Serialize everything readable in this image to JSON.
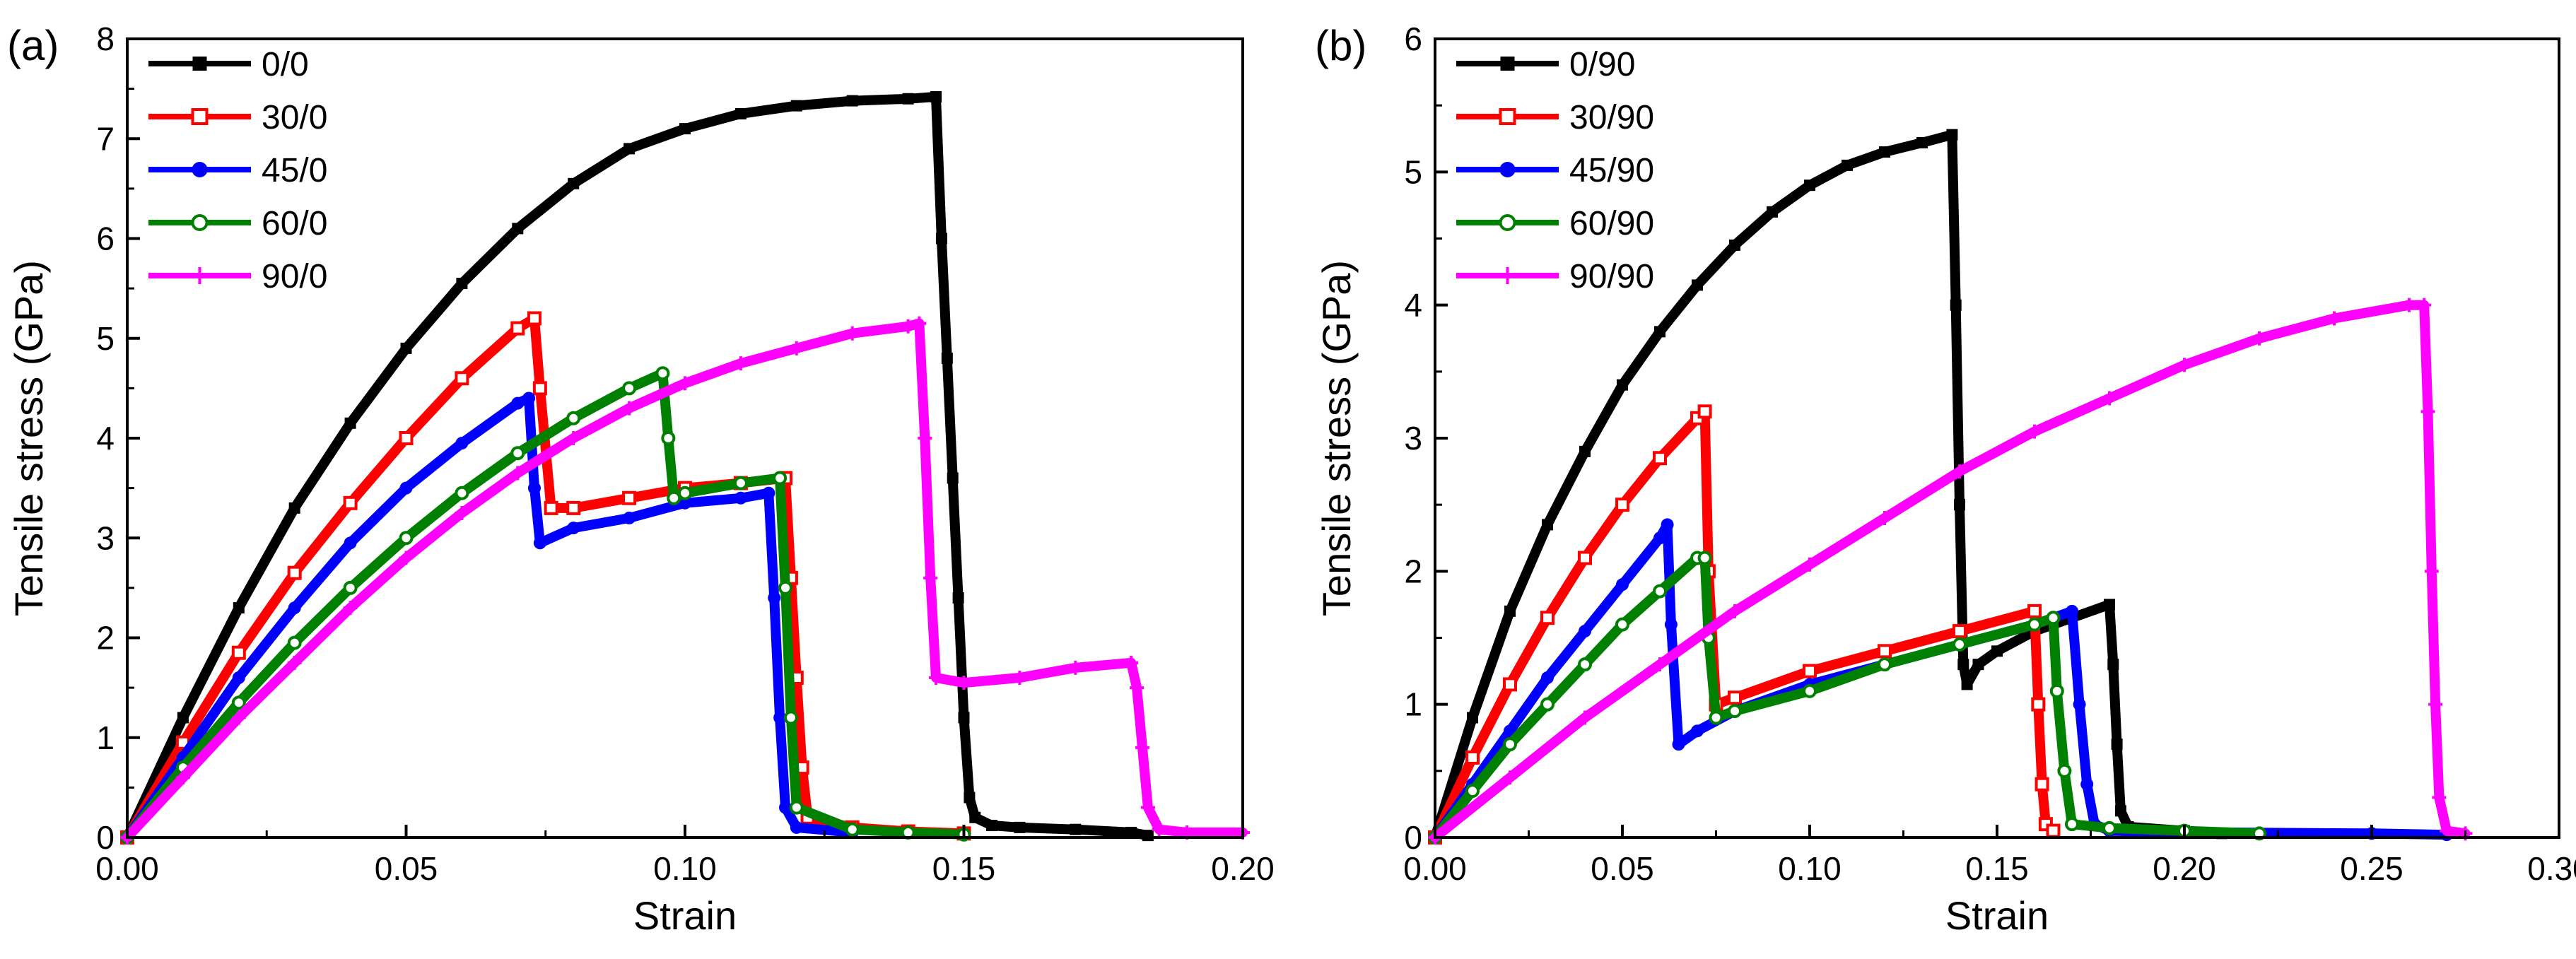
{
  "chart_data": [
    {
      "type": "scatter",
      "panel_label": "(a)",
      "xlabel": "Strain",
      "ylabel": "Tensile stress (GPa)",
      "xlim": [
        0,
        0.2
      ],
      "ylim": [
        0,
        8
      ],
      "x_ticks": [
        "0.00",
        "0.05",
        "0.10",
        "0.15",
        "0.20"
      ],
      "y_ticks": [
        "0",
        "1",
        "2",
        "3",
        "4",
        "5",
        "6",
        "7",
        "8"
      ],
      "x_tick_values": [
        0,
        0.05,
        0.1,
        0.15,
        0.2
      ],
      "y_tick_values": [
        0,
        1,
        2,
        3,
        4,
        5,
        6,
        7,
        8
      ],
      "legend_position": "top-left",
      "series": [
        {
          "name": "0/0",
          "color": "#000000",
          "marker": "filled-square",
          "x": [
            0.0,
            0.01,
            0.02,
            0.03,
            0.04,
            0.05,
            0.06,
            0.07,
            0.08,
            0.09,
            0.1,
            0.11,
            0.12,
            0.13,
            0.14,
            0.145,
            0.146,
            0.147,
            0.148,
            0.149,
            0.15,
            0.151,
            0.152,
            0.155,
            0.16,
            0.17,
            0.18,
            0.183
          ],
          "y": [
            0.0,
            1.2,
            2.3,
            3.3,
            4.15,
            4.9,
            5.55,
            6.1,
            6.55,
            6.9,
            7.1,
            7.25,
            7.33,
            7.38,
            7.4,
            7.42,
            6.0,
            4.8,
            3.6,
            2.4,
            1.2,
            0.4,
            0.2,
            0.12,
            0.1,
            0.08,
            0.05,
            0.02
          ]
        },
        {
          "name": "30/0",
          "color": "#ff0000",
          "marker": "open-square",
          "x": [
            0.0,
            0.01,
            0.02,
            0.03,
            0.04,
            0.05,
            0.06,
            0.07,
            0.073,
            0.074,
            0.076,
            0.08,
            0.09,
            0.1,
            0.11,
            0.118,
            0.119,
            0.12,
            0.121,
            0.122,
            0.13,
            0.14,
            0.15
          ],
          "y": [
            0.0,
            0.95,
            1.85,
            2.65,
            3.35,
            4.0,
            4.6,
            5.1,
            5.2,
            4.5,
            3.3,
            3.3,
            3.4,
            3.5,
            3.55,
            3.6,
            2.6,
            1.6,
            0.7,
            0.2,
            0.1,
            0.06,
            0.04
          ]
        },
        {
          "name": "45/0",
          "color": "#0000ff",
          "marker": "filled-circle",
          "x": [
            0.0,
            0.01,
            0.02,
            0.03,
            0.04,
            0.05,
            0.06,
            0.07,
            0.072,
            0.073,
            0.074,
            0.08,
            0.09,
            0.1,
            0.11,
            0.115,
            0.116,
            0.117,
            0.118,
            0.12,
            0.13
          ],
          "y": [
            0.0,
            0.8,
            1.6,
            2.3,
            2.95,
            3.5,
            3.95,
            4.35,
            4.4,
            3.5,
            2.95,
            3.1,
            3.2,
            3.35,
            3.4,
            3.45,
            2.4,
            1.2,
            0.3,
            0.1,
            0.05
          ]
        },
        {
          "name": "60/0",
          "color": "#008000",
          "marker": "open-circle",
          "x": [
            0.0,
            0.01,
            0.02,
            0.03,
            0.04,
            0.05,
            0.06,
            0.07,
            0.08,
            0.09,
            0.096,
            0.097,
            0.098,
            0.1,
            0.11,
            0.117,
            0.118,
            0.119,
            0.12,
            0.13,
            0.14,
            0.15
          ],
          "y": [
            0.0,
            0.7,
            1.35,
            1.95,
            2.5,
            3.0,
            3.45,
            3.85,
            4.2,
            4.5,
            4.65,
            4.0,
            3.4,
            3.45,
            3.55,
            3.6,
            2.5,
            1.2,
            0.3,
            0.08,
            0.05,
            0.03
          ]
        },
        {
          "name": "90/0",
          "color": "#ff00ff",
          "marker": "plus",
          "x": [
            0.0,
            0.01,
            0.02,
            0.03,
            0.04,
            0.05,
            0.06,
            0.07,
            0.08,
            0.09,
            0.1,
            0.11,
            0.12,
            0.13,
            0.14,
            0.142,
            0.143,
            0.144,
            0.145,
            0.15,
            0.16,
            0.17,
            0.18,
            0.181,
            0.182,
            0.183,
            0.185,
            0.19,
            0.2
          ],
          "y": [
            0.0,
            0.6,
            1.2,
            1.75,
            2.3,
            2.8,
            3.25,
            3.65,
            4.0,
            4.3,
            4.55,
            4.75,
            4.9,
            5.05,
            5.12,
            5.15,
            4.0,
            2.6,
            1.6,
            1.55,
            1.6,
            1.7,
            1.75,
            1.5,
            0.9,
            0.3,
            0.08,
            0.05,
            0.05
          ]
        }
      ]
    },
    {
      "type": "scatter",
      "panel_label": "(b)",
      "xlabel": "Strain",
      "ylabel": "Tensile stress (GPa)",
      "xlim": [
        0,
        0.3
      ],
      "ylim": [
        0,
        6
      ],
      "x_ticks": [
        "0.00",
        "0.05",
        "0.10",
        "0.15",
        "0.20",
        "0.25",
        "0.30"
      ],
      "y_ticks": [
        "0",
        "1",
        "2",
        "3",
        "4",
        "5",
        "6"
      ],
      "x_tick_values": [
        0,
        0.05,
        0.1,
        0.15,
        0.2,
        0.25,
        0.3
      ],
      "y_tick_values": [
        0,
        1,
        2,
        3,
        4,
        5,
        6
      ],
      "legend_position": "top-left",
      "series": [
        {
          "name": "0/90",
          "color": "#000000",
          "marker": "filled-square",
          "x": [
            0.0,
            0.01,
            0.02,
            0.03,
            0.04,
            0.05,
            0.06,
            0.07,
            0.08,
            0.09,
            0.1,
            0.11,
            0.12,
            0.13,
            0.138,
            0.139,
            0.14,
            0.141,
            0.142,
            0.145,
            0.15,
            0.16,
            0.17,
            0.18,
            0.181,
            0.182,
            0.183,
            0.185,
            0.2,
            0.21
          ],
          "y": [
            0.0,
            0.9,
            1.7,
            2.35,
            2.9,
            3.4,
            3.8,
            4.15,
            4.45,
            4.7,
            4.9,
            5.05,
            5.15,
            5.22,
            5.28,
            4.0,
            2.5,
            1.3,
            1.15,
            1.3,
            1.4,
            1.55,
            1.65,
            1.75,
            1.3,
            0.7,
            0.2,
            0.08,
            0.05,
            0.03
          ]
        },
        {
          "name": "30/90",
          "color": "#ff0000",
          "marker": "open-square",
          "x": [
            0.0,
            0.01,
            0.02,
            0.03,
            0.04,
            0.05,
            0.06,
            0.07,
            0.072,
            0.073,
            0.075,
            0.08,
            0.1,
            0.12,
            0.14,
            0.16,
            0.161,
            0.162,
            0.163,
            0.165
          ],
          "y": [
            0.0,
            0.6,
            1.15,
            1.65,
            2.1,
            2.5,
            2.85,
            3.15,
            3.2,
            2.0,
            1.0,
            1.05,
            1.25,
            1.4,
            1.55,
            1.7,
            1.0,
            0.4,
            0.1,
            0.05
          ]
        },
        {
          "name": "45/90",
          "color": "#0000ff",
          "marker": "filled-circle",
          "x": [
            0.0,
            0.01,
            0.02,
            0.03,
            0.04,
            0.05,
            0.06,
            0.062,
            0.063,
            0.065,
            0.07,
            0.08,
            0.1,
            0.12,
            0.14,
            0.16,
            0.17,
            0.172,
            0.174,
            0.176,
            0.18,
            0.2,
            0.25,
            0.27
          ],
          "y": [
            0.0,
            0.4,
            0.8,
            1.2,
            1.55,
            1.9,
            2.25,
            2.35,
            1.6,
            0.7,
            0.8,
            0.95,
            1.15,
            1.3,
            1.45,
            1.6,
            1.7,
            1.0,
            0.4,
            0.1,
            0.05,
            0.04,
            0.03,
            0.02
          ]
        },
        {
          "name": "60/90",
          "color": "#008000",
          "marker": "open-circle",
          "x": [
            0.0,
            0.01,
            0.02,
            0.03,
            0.04,
            0.05,
            0.06,
            0.07,
            0.072,
            0.073,
            0.075,
            0.08,
            0.1,
            0.12,
            0.14,
            0.16,
            0.165,
            0.166,
            0.168,
            0.17,
            0.18,
            0.2,
            0.22
          ],
          "y": [
            0.0,
            0.35,
            0.7,
            1.0,
            1.3,
            1.6,
            1.85,
            2.1,
            2.1,
            1.5,
            0.9,
            0.95,
            1.1,
            1.3,
            1.45,
            1.6,
            1.65,
            1.1,
            0.5,
            0.1,
            0.07,
            0.05,
            0.03
          ]
        },
        {
          "name": "90/90",
          "color": "#ff00ff",
          "marker": "plus",
          "x": [
            0.0,
            0.02,
            0.04,
            0.06,
            0.08,
            0.1,
            0.12,
            0.14,
            0.16,
            0.18,
            0.2,
            0.22,
            0.24,
            0.26,
            0.264,
            0.265,
            0.266,
            0.267,
            0.268,
            0.27,
            0.275
          ],
          "y": [
            0.0,
            0.45,
            0.9,
            1.3,
            1.7,
            2.05,
            2.4,
            2.75,
            3.05,
            3.3,
            3.55,
            3.75,
            3.9,
            4.0,
            4.0,
            3.2,
            2.0,
            1.0,
            0.3,
            0.05,
            0.03
          ]
        }
      ]
    }
  ]
}
